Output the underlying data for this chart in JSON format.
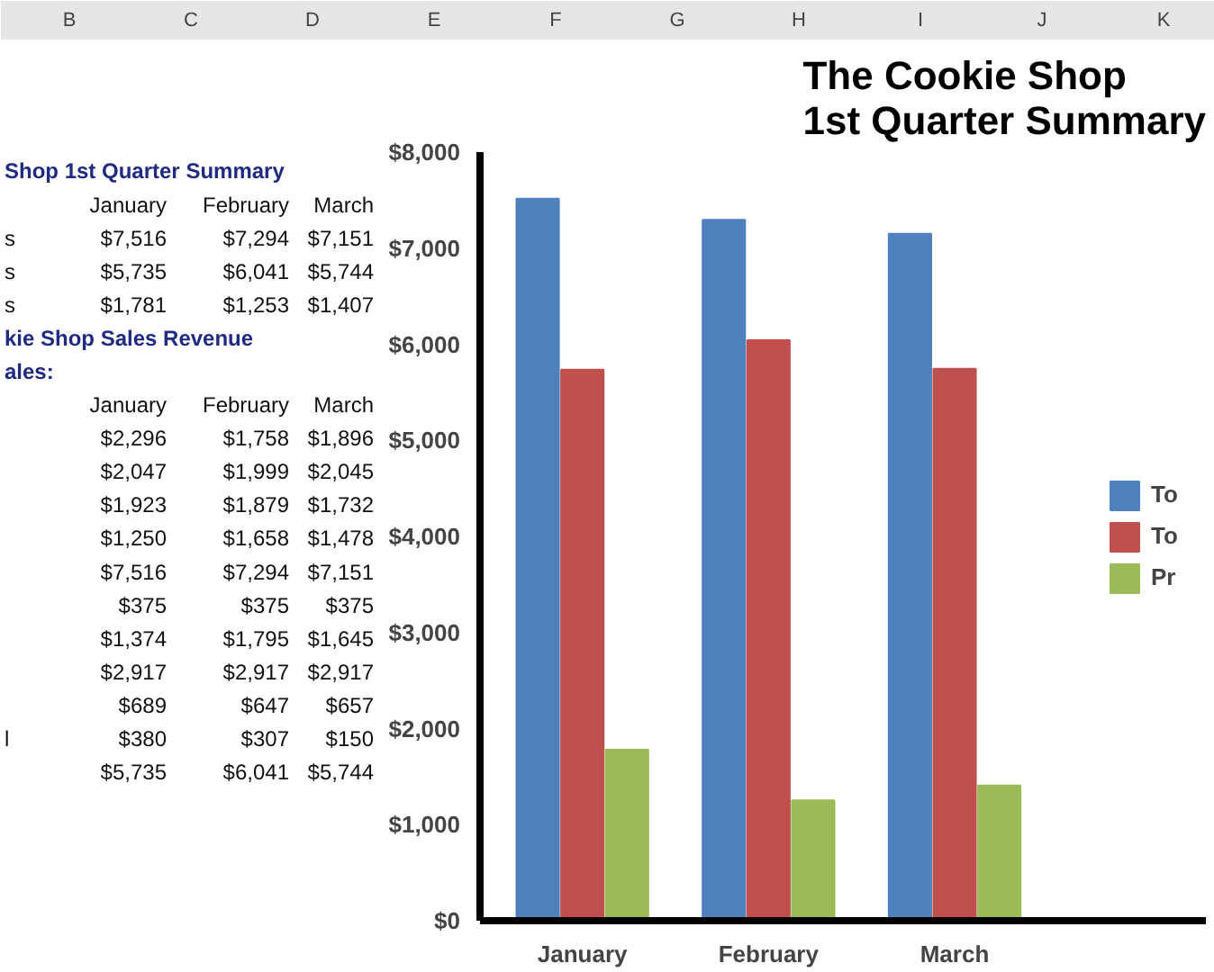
{
  "chart_data": {
    "type": "bar",
    "title": "The Cookie Shop\n1st Quarter Summary",
    "categories": [
      "January",
      "February",
      "March"
    ],
    "series": [
      {
        "name": "To",
        "color": "#4f81bd",
        "values": [
          7516,
          7294,
          7151
        ]
      },
      {
        "name": "To",
        "color": "#c0504d",
        "values": [
          5735,
          6041,
          5744
        ]
      },
      {
        "name": "Pr",
        "color": "#9bbb59",
        "values": [
          1781,
          1253,
          1407
        ]
      }
    ],
    "ylim": [
      0,
      8000
    ],
    "yticks": [
      {
        "value": 0,
        "label": "$0"
      },
      {
        "value": 1000,
        "label": "$1,000"
      },
      {
        "value": 2000,
        "label": "$2,000"
      },
      {
        "value": 3000,
        "label": "$3,000"
      },
      {
        "value": 4000,
        "label": "$4,000"
      },
      {
        "value": 5000,
        "label": "$5,000"
      },
      {
        "value": 6000,
        "label": "$6,000"
      },
      {
        "value": 7000,
        "label": "$7,000"
      },
      {
        "value": 8000,
        "label": "$8,000"
      }
    ],
    "legend": "right",
    "annotations": [
      "B\tC\tD\tE\tF\tG\tH\tI\tJ\tK",
      "Shop 1st Quarter Summary",
      "\tJanuary\tFebruary\tMarch",
      "s\t$7,516\t$7,294\t$7,151",
      "s\t$5,735\t$6,041\t$5,744",
      "s\t$1,781\t$1,253\t$1,407",
      "kie Shop Sales Revenue",
      "ales:",
      "\tJanuary\tFebruary\tMarch",
      "\t$2,296\t$1,758\t$1,896",
      "\t$2,047\t$1,999\t$2,045",
      "\t$1,923\t$1,879\t$1,732",
      "\t$1,250\t$1,658\t$1,478",
      "\t$7,516\t$7,294\t$7,151",
      "\t$375\t$375\t$375",
      "\t$1,374\t$1,795\t$1,645",
      "\t$2,917\t$2,917\t$2,917",
      "\t$689\t$647\t$657",
      "l\t$380\t$307\t$150",
      "\t$5,735\t$6,041\t$5,744"
    ]
  }
}
